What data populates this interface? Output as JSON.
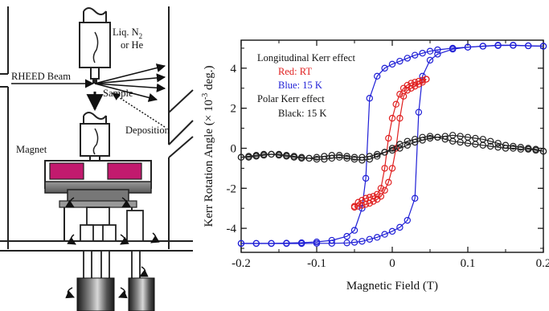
{
  "apparatus": {
    "labels": {
      "liq": "Liq. N",
      "liq_sub": "2",
      "or_he": "or He",
      "rheed": "RHEED Beam",
      "sample": "Sample",
      "deposition": "Deposition",
      "magnet": "Magnet"
    },
    "colors": {
      "magnet": "#c21a6e",
      "metal": "#7a7a7a",
      "dark": "#2a2a2a"
    }
  },
  "chart_data": {
    "type": "line",
    "xlabel": "Magnetic Field (T)",
    "ylabel_main": "Kerr Rotation Angle (",
    "ylabel_times": "×",
    "ylabel_ten": "10",
    "ylabel_exp": "-3",
    "ylabel_end": " deg.)",
    "xlim": [
      -0.2,
      0.2
    ],
    "ylim": [
      -5.2,
      5.4
    ],
    "xticks": [
      -0.2,
      -0.1,
      0,
      0.1,
      0.2
    ],
    "xtick_labels": [
      "-0.2",
      "-0.1",
      "0",
      "0.1",
      "0.2"
    ],
    "yticks": [
      -4,
      -2,
      0,
      2,
      4
    ],
    "ytick_labels": [
      "-4",
      "-2",
      "0",
      "2",
      "4"
    ],
    "legend": {
      "title1": "Longitudinal Kerr effect",
      "red": "Red: RT",
      "blue": "Blue: 15 K",
      "title2": "Polar Kerr effect",
      "black": "Black: 15 K",
      "placement": "top-left"
    },
    "series": [
      {
        "color": "#1f1fd6",
        "x": [
          -0.2,
          -0.18,
          -0.16,
          -0.14,
          -0.12,
          -0.1,
          -0.08,
          -0.06,
          -0.05,
          -0.04,
          -0.035,
          -0.03,
          -0.02,
          -0.01,
          0,
          0.01,
          0.02,
          0.03,
          0.04,
          0.05,
          0.06,
          0.08,
          0.1,
          0.12,
          0.14,
          0.16,
          0.18,
          0.2
        ],
        "y": [
          -4.75,
          -4.75,
          -4.75,
          -4.74,
          -4.72,
          -4.68,
          -4.6,
          -4.4,
          -4.1,
          -3.0,
          -1.5,
          2.5,
          3.6,
          4.0,
          4.2,
          4.35,
          4.5,
          4.65,
          4.75,
          4.85,
          4.92,
          5.0,
          5.05,
          5.1,
          5.15,
          5.15,
          5.12,
          5.1
        ]
      },
      {
        "color": "#1f1fd6",
        "x": [
          0.2,
          0.18,
          0.16,
          0.14,
          0.12,
          0.1,
          0.08,
          0.06,
          0.05,
          0.04,
          0.035,
          0.03,
          0.02,
          0.01,
          0,
          -0.01,
          -0.02,
          -0.03,
          -0.04,
          -0.05,
          -0.06,
          -0.08,
          -0.1,
          -0.12,
          -0.14,
          -0.16,
          -0.18,
          -0.2
        ],
        "y": [
          5.1,
          5.12,
          5.14,
          5.13,
          5.1,
          5.05,
          4.95,
          4.7,
          4.4,
          3.6,
          1.8,
          -2.5,
          -3.6,
          -3.95,
          -4.15,
          -4.3,
          -4.45,
          -4.55,
          -4.65,
          -4.7,
          -4.73,
          -4.75,
          -4.75,
          -4.76,
          -4.76,
          -4.76,
          -4.76,
          -4.76
        ]
      },
      {
        "color": "#e02020",
        "x": [
          -0.05,
          -0.045,
          -0.04,
          -0.035,
          -0.03,
          -0.025,
          -0.02,
          -0.015,
          -0.01,
          -0.005,
          0,
          0.005,
          0.01,
          0.015,
          0.02,
          0.025,
          0.03,
          0.035,
          0.04,
          0.045
        ],
        "y": [
          -2.9,
          -2.7,
          -2.6,
          -2.5,
          -2.45,
          -2.4,
          -2.3,
          -2.0,
          -1.0,
          0.5,
          1.5,
          2.2,
          2.7,
          3.0,
          3.15,
          3.25,
          3.3,
          3.35,
          3.4,
          3.45
        ]
      },
      {
        "color": "#e02020",
        "x": [
          0.045,
          0.04,
          0.035,
          0.03,
          0.025,
          0.02,
          0.015,
          0.01,
          0.005,
          0,
          -0.005,
          -0.01,
          -0.015,
          -0.02,
          -0.025,
          -0.03,
          -0.035,
          -0.04,
          -0.045,
          -0.05
        ],
        "y": [
          3.45,
          3.3,
          3.2,
          3.1,
          3.0,
          2.9,
          2.6,
          1.5,
          0.0,
          -1.0,
          -1.7,
          -2.1,
          -2.4,
          -2.55,
          -2.65,
          -2.75,
          -2.8,
          -2.85,
          -2.9,
          -2.95
        ]
      },
      {
        "color": "#222222",
        "x": [
          -0.2,
          -0.19,
          -0.18,
          -0.17,
          -0.16,
          -0.15,
          -0.14,
          -0.13,
          -0.12,
          -0.11,
          -0.1,
          -0.09,
          -0.08,
          -0.07,
          -0.06,
          -0.05,
          -0.04,
          -0.03,
          -0.02,
          -0.01,
          0,
          0.01,
          0.02,
          0.03,
          0.04,
          0.05,
          0.06,
          0.07,
          0.08,
          0.09,
          0.1,
          0.11,
          0.12,
          0.13,
          0.14,
          0.15,
          0.16,
          0.17,
          0.18,
          0.19,
          0.2
        ],
        "y": [
          -0.45,
          -0.45,
          -0.4,
          -0.35,
          -0.3,
          -0.3,
          -0.35,
          -0.4,
          -0.45,
          -0.5,
          -0.55,
          -0.55,
          -0.5,
          -0.45,
          -0.5,
          -0.55,
          -0.6,
          -0.55,
          -0.4,
          -0.2,
          0.0,
          0.2,
          0.35,
          0.45,
          0.55,
          0.6,
          0.55,
          0.45,
          0.35,
          0.3,
          0.25,
          0.2,
          0.15,
          0.1,
          0.05,
          0.0,
          0.0,
          -0.05,
          -0.05,
          -0.1,
          -0.15
        ]
      },
      {
        "color": "#222222",
        "x": [
          0.2,
          0.19,
          0.18,
          0.17,
          0.16,
          0.15,
          0.14,
          0.13,
          0.12,
          0.11,
          0.1,
          0.09,
          0.08,
          0.07,
          0.06,
          0.05,
          0.04,
          0.03,
          0.02,
          0.01,
          0,
          -0.01,
          -0.02,
          -0.03,
          -0.04,
          -0.05,
          -0.06,
          -0.07,
          -0.08,
          -0.09,
          -0.1,
          -0.11,
          -0.12,
          -0.13,
          -0.14,
          -0.15,
          -0.16,
          -0.17,
          -0.18,
          -0.19,
          -0.2
        ],
        "y": [
          -0.15,
          -0.05,
          0.0,
          0.05,
          0.1,
          0.15,
          0.25,
          0.35,
          0.45,
          0.5,
          0.55,
          0.6,
          0.65,
          0.6,
          0.55,
          0.5,
          0.4,
          0.3,
          0.15,
          0.0,
          -0.1,
          -0.2,
          -0.3,
          -0.4,
          -0.45,
          -0.45,
          -0.4,
          -0.35,
          -0.35,
          -0.4,
          -0.45,
          -0.5,
          -0.5,
          -0.45,
          -0.4,
          -0.35,
          -0.3,
          -0.3,
          -0.35,
          -0.4,
          -0.45
        ]
      }
    ]
  }
}
